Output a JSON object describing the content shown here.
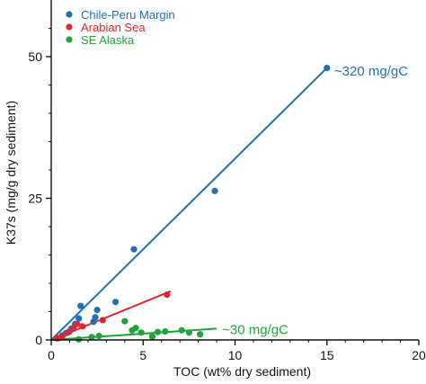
{
  "chart_data": {
    "type": "scatter",
    "xlabel": "TOC (wt% dry sediment)",
    "ylabel": "K37s (mg/g dry sediment)",
    "xlim": [
      0,
      20
    ],
    "ylim": [
      0,
      60
    ],
    "x_ticks": [
      0,
      5,
      10,
      15,
      20
    ],
    "y_ticks": [
      0,
      25,
      50
    ],
    "x_tick_labels": [
      "0",
      "5",
      "10",
      "15",
      "20"
    ],
    "y_tick_labels": [
      "0",
      "25",
      "50"
    ],
    "grid": false,
    "legend_position": "top-left",
    "series": [
      {
        "name": "Chile-Peru Margin",
        "color": "#1f6fb5",
        "points": [
          [
            0.4,
            0.3
          ],
          [
            0.6,
            0.8
          ],
          [
            0.8,
            1.2
          ],
          [
            1.0,
            1.5
          ],
          [
            1.1,
            2.0
          ],
          [
            1.3,
            2.8
          ],
          [
            1.5,
            3.8
          ],
          [
            1.6,
            6.0
          ],
          [
            2.3,
            3.2
          ],
          [
            2.4,
            4.0
          ],
          [
            2.5,
            5.3
          ],
          [
            3.5,
            6.7
          ],
          [
            4.5,
            16.0
          ],
          [
            8.9,
            26.3
          ],
          [
            15.0,
            48.0
          ]
        ],
        "fit": {
          "x": [
            0,
            15
          ],
          "y": [
            0,
            48
          ]
        }
      },
      {
        "name": "Arabian Sea",
        "color": "#e0262e",
        "points": [
          [
            0.3,
            0.3
          ],
          [
            0.6,
            0.6
          ],
          [
            0.9,
            1.3
          ],
          [
            1.2,
            2.0
          ],
          [
            1.4,
            2.8
          ],
          [
            1.7,
            2.4
          ],
          [
            2.8,
            3.5
          ],
          [
            6.3,
            8.0
          ]
        ],
        "fit": {
          "x": [
            0,
            6.5
          ],
          "y": [
            0,
            8.6
          ]
        }
      },
      {
        "name": "SE Alaska",
        "color": "#1ea53a",
        "points": [
          [
            1.5,
            0.1
          ],
          [
            2.2,
            0.5
          ],
          [
            2.6,
            0.7
          ],
          [
            4.0,
            3.3
          ],
          [
            4.4,
            1.7
          ],
          [
            4.6,
            2.1
          ],
          [
            4.9,
            1.3
          ],
          [
            5.5,
            0.6
          ],
          [
            5.8,
            1.4
          ],
          [
            6.2,
            1.5
          ],
          [
            7.1,
            1.7
          ],
          [
            7.5,
            1.3
          ],
          [
            8.1,
            1.0
          ]
        ],
        "fit": {
          "x": [
            0,
            9.0
          ],
          "y": [
            0,
            2.0
          ]
        }
      }
    ],
    "annotations": [
      {
        "text": "~320 mg/gC",
        "color": "#1f6fb5",
        "x": 15.4,
        "y": 47.5
      },
      {
        "text": "~30 mg/gC",
        "color": "#1ea53a",
        "x": 9.3,
        "y": 1.8
      }
    ]
  }
}
